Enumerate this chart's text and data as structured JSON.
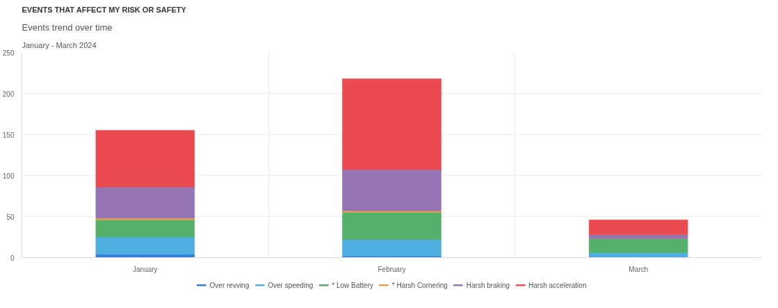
{
  "chart_data": {
    "type": "bar",
    "title": "EVENTS THAT AFFECT MY RISK OR SAFETY",
    "subtitle": "Events trend over time",
    "annotations": [
      "January - March 2024"
    ],
    "categories": [
      "January",
      "February",
      "March"
    ],
    "stacked": true,
    "series": [
      {
        "name": "Over revving",
        "color": "#2f7ed8",
        "values": [
          4,
          2,
          0
        ]
      },
      {
        "name": "Over speeding",
        "color": "#4fafe0",
        "values": [
          21,
          20,
          6
        ]
      },
      {
        "name": "* Low Battery",
        "color": "#55b06b",
        "values": [
          21,
          33,
          17
        ]
      },
      {
        "name": "* Harsh Cornering",
        "color": "#e8a04a",
        "values": [
          2,
          2,
          0
        ]
      },
      {
        "name": "Harsh braking",
        "color": "#9575b3",
        "values": [
          38,
          50,
          5
        ]
      },
      {
        "name": "Harsh acceleration",
        "color": "#e94b50",
        "values": [
          69,
          111,
          18
        ]
      }
    ],
    "ylim": [
      0,
      250
    ],
    "yticks": [
      0,
      50,
      100,
      150,
      200,
      250
    ],
    "grid": true,
    "legend": "bottom"
  }
}
